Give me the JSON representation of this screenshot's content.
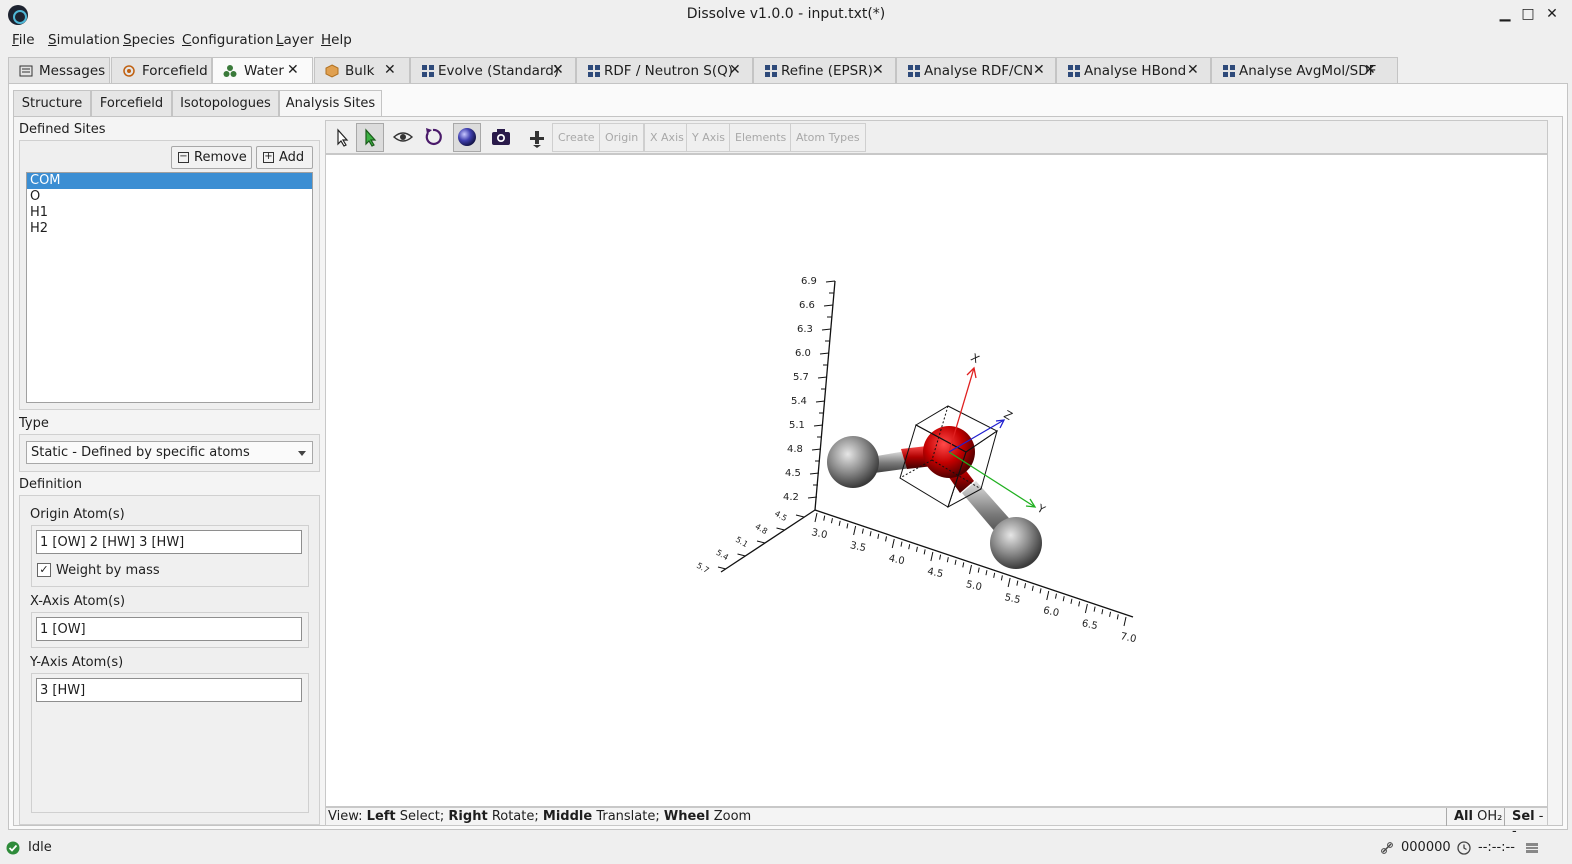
{
  "window": {
    "title": "Dissolve v1.0.0 - input.txt(*)",
    "minimize": "▁",
    "maximize": "□",
    "close": "✕"
  },
  "menu": [
    "File",
    "Simulation",
    "Species",
    "Configuration",
    "Layer",
    "Help"
  ],
  "main_tabs": [
    {
      "label": "Messages",
      "icon": "messages-icon",
      "closable": false
    },
    {
      "label": "Forcefield",
      "icon": "forcefield-icon",
      "closable": false
    },
    {
      "label": "Water",
      "icon": "species-icon",
      "closable": true,
      "active": true
    },
    {
      "label": "Bulk",
      "icon": "configuration-icon",
      "closable": true
    },
    {
      "label": "Evolve (Standard)",
      "icon": "layer-icon",
      "closable": true
    },
    {
      "label": "RDF / Neutron S(Q)",
      "icon": "layer-icon",
      "closable": true
    },
    {
      "label": "Refine (EPSR)",
      "icon": "layer-icon",
      "closable": true
    },
    {
      "label": "Analyse RDF/CN",
      "icon": "layer-icon",
      "closable": true
    },
    {
      "label": "Analyse HBond",
      "icon": "layer-icon",
      "closable": true
    },
    {
      "label": "Analyse AvgMol/SDF",
      "icon": "layer-icon",
      "closable": true
    }
  ],
  "sub_tabs": [
    "Structure",
    "Forcefield",
    "Isotopologues",
    "Analysis Sites"
  ],
  "sites": {
    "heading": "Defined Sites",
    "remove_label": "Remove",
    "add_label": "Add",
    "items": [
      "COM",
      "O",
      "H1",
      "H2"
    ],
    "selected": "COM"
  },
  "type": {
    "heading": "Type",
    "value": "Static - Defined by specific atoms"
  },
  "definition": {
    "heading": "Definition",
    "origin_label": "Origin Atom(s)",
    "origin_value": "1 [OW] 2 [HW] 3 [HW]",
    "weight_label": "Weight by mass",
    "weight_checked": true,
    "xaxis_label": "X-Axis Atom(s)",
    "xaxis_value": "1 [OW]",
    "yaxis_label": "Y-Axis Atom(s)",
    "yaxis_value": "3 [HW]"
  },
  "toolbar": {
    "create": "Create",
    "origin": "Origin",
    "xaxis": "X Axis",
    "yaxis": "Y Axis",
    "elements": "Elements",
    "atom_types": "Atom Types"
  },
  "viewer": {
    "vert_ticks": [
      "6.9",
      "6.6",
      "6.3",
      "6.0",
      "5.7",
      "5.4",
      "5.1",
      "4.8",
      "4.5",
      "4.2"
    ],
    "horiz_ticks": [
      "3.0",
      "3.5",
      "4.0",
      "4.5",
      "5.0",
      "5.5",
      "6.0",
      "6.5",
      "7.0"
    ],
    "depth_ticks": [
      "4.5",
      "4.8",
      "5.1",
      "5.4",
      "5.7"
    ],
    "axis_x": "X",
    "axis_y": "Y",
    "axis_z": "Z",
    "colors": {
      "oxygen": "#c40000",
      "hydrogen": "#7a7a7a",
      "x_axis": "#e02020",
      "y_axis": "#20b020",
      "z_axis": "#2020d0"
    }
  },
  "viewer_status": {
    "prefix": "View:",
    "left_b": "Left",
    "left": "Select;",
    "right_b": "Right",
    "right": "Rotate;",
    "middle_b": "Middle",
    "middle": "Translate;",
    "wheel_b": "Wheel",
    "wheel": "Zoom",
    "all_b": "All",
    "formula": "OH₂",
    "sel_b": "Sel",
    "sel": "--"
  },
  "status": {
    "state": "Idle",
    "counter": "000000",
    "time": "--:--:--"
  }
}
